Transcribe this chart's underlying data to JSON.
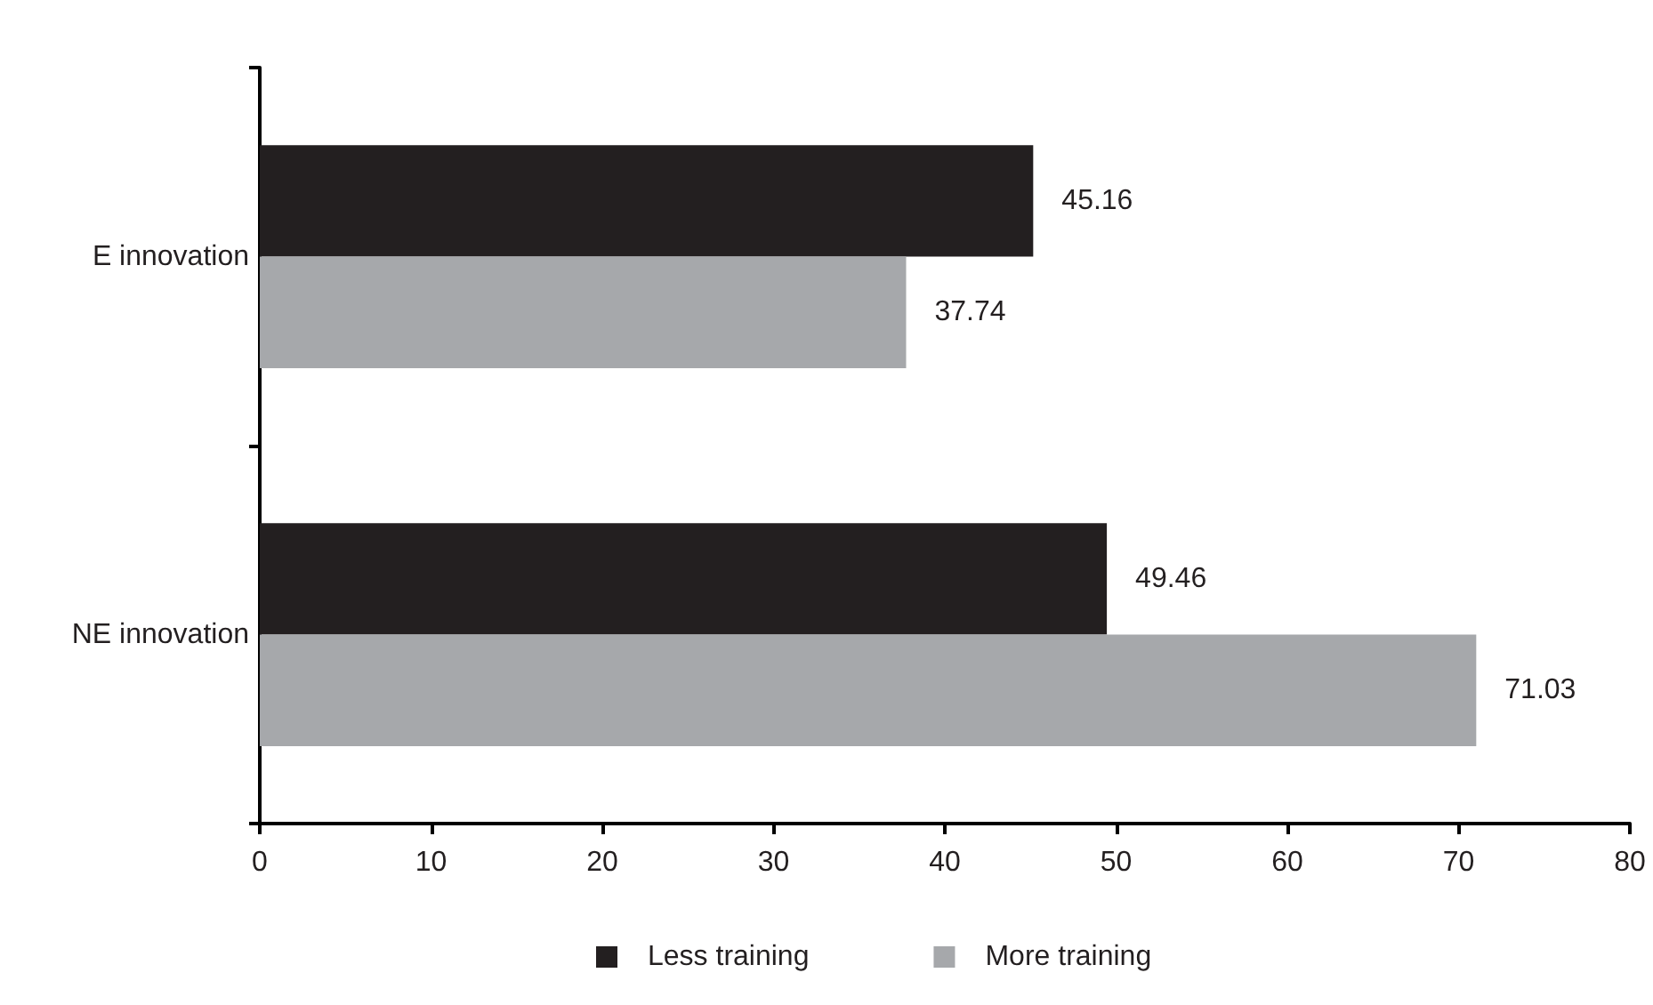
{
  "chart_data": {
    "type": "bar",
    "orientation": "horizontal",
    "categories": [
      "E innovation",
      "NE innovation"
    ],
    "series": [
      {
        "name": "Less training",
        "color": "#231f20",
        "values": [
          45.16,
          49.46
        ]
      },
      {
        "name": "More training",
        "color": "#a6a8ab",
        "values": [
          37.74,
          71.03
        ]
      }
    ],
    "xlim": [
      0,
      80
    ],
    "xticks": [
      0,
      10,
      20,
      30,
      40,
      50,
      60,
      70,
      80
    ],
    "data_labels": true,
    "grid": false,
    "legend": "bottom"
  }
}
